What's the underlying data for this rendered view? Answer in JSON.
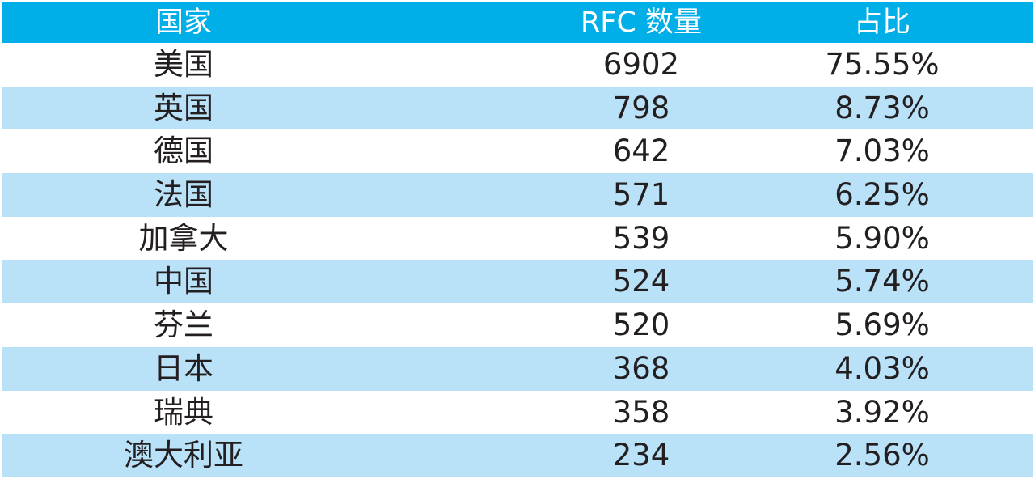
{
  "table": {
    "headers": {
      "country": "国家",
      "count": "RFC 数量",
      "share": "占比"
    },
    "rows": [
      {
        "country": "美国",
        "count": "6902",
        "share": "75.55%"
      },
      {
        "country": "英国",
        "count": "798",
        "share": "8.73%"
      },
      {
        "country": "德国",
        "count": "642",
        "share": "7.03%"
      },
      {
        "country": "法国",
        "count": "571",
        "share": "6.25%"
      },
      {
        "country": "加拿大",
        "count": "539",
        "share": "5.90%"
      },
      {
        "country": "中国",
        "count": "524",
        "share": "5.74%"
      },
      {
        "country": "芬兰",
        "count": "520",
        "share": "5.69%"
      },
      {
        "country": "日本",
        "count": "368",
        "share": "4.03%"
      },
      {
        "country": "瑞典",
        "count": "358",
        "share": "3.92%"
      },
      {
        "country": "澳大利亚",
        "count": "234",
        "share": "2.56%"
      }
    ]
  },
  "colors": {
    "header_bg": "#00aee8",
    "header_text": "#ffffff",
    "stripe_bg": "#b9e1f8",
    "body_text": "#231f20"
  }
}
